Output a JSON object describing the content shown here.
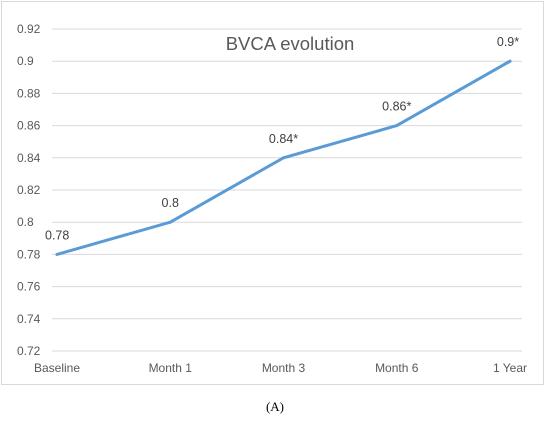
{
  "caption": "(A)",
  "chart_data": {
    "type": "line",
    "title": "BVCA evolution",
    "xlabel": "",
    "ylabel": "",
    "categories": [
      "Baseline",
      "Month 1",
      "Month 3",
      "Month 6",
      "1 Year"
    ],
    "series": [
      {
        "values": [
          0.78,
          0.8,
          0.84,
          0.86,
          0.9
        ],
        "color": "#5b9bd5"
      }
    ],
    "data_labels": [
      "0.78",
      "0.8",
      "0.84*",
      "0.86*",
      "0.9*"
    ],
    "ylim": [
      0.72,
      0.92
    ],
    "yticks": [
      0.72,
      0.74,
      0.76,
      0.78,
      0.8,
      0.82,
      0.84,
      0.86,
      0.88,
      0.9,
      0.92
    ],
    "ytick_labels": [
      "0.72",
      "0.74",
      "0.76",
      "0.78",
      "0.8",
      "0.82",
      "0.84",
      "0.86",
      "0.88",
      "0.9",
      "0.92"
    ],
    "grid": true,
    "legend": "none"
  }
}
